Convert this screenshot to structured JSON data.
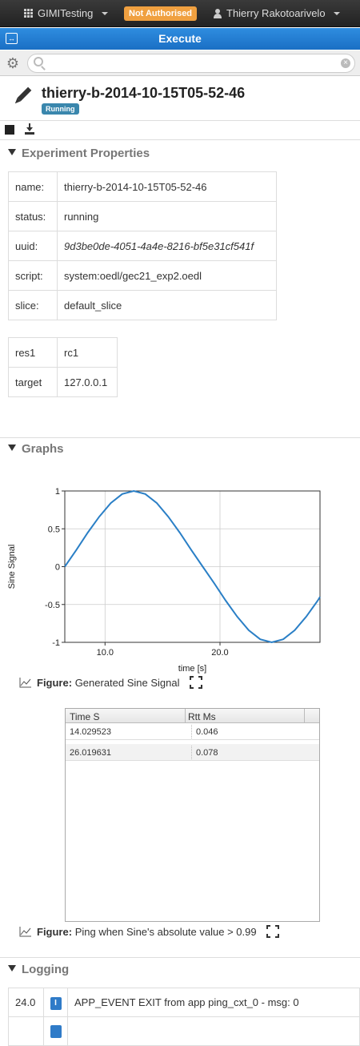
{
  "topbar": {
    "project": "GIMITesting",
    "auth_badge": "Not Authorised",
    "user": "Thierry Rakotoarivelo"
  },
  "execbar": {
    "title": "Execute"
  },
  "search": {
    "placeholder": "",
    "value": ""
  },
  "experiment": {
    "name": "thierry-b-2014-10-15T05-52-46",
    "status_badge": "Running"
  },
  "sections": {
    "properties": "Experiment Properties",
    "graphs": "Graphs",
    "logging": "Logging"
  },
  "properties": [
    {
      "key": "name:",
      "value": "thierry-b-2014-10-15T05-52-46"
    },
    {
      "key": "status:",
      "value": "running"
    },
    {
      "key": "uuid:",
      "value": "9d3be0de-4051-4a4e-8216-bf5e31cf541f"
    },
    {
      "key": "script:",
      "value": "system:oedl/gec21_exp2.oedl"
    },
    {
      "key": "slice:",
      "value": "default_slice"
    }
  ],
  "resources": [
    {
      "key": "res1",
      "value": "rc1"
    },
    {
      "key": "target",
      "value": "127.0.0.1"
    }
  ],
  "chart_data": {
    "type": "line",
    "xlabel": "time [s]",
    "ylabel": "Sine Signal",
    "xlim": [
      6.5,
      28.7
    ],
    "ylim": [
      -1,
      1
    ],
    "xticks": [
      "10.0",
      "20.0"
    ],
    "yticks": [
      "1",
      "0.5",
      "0",
      "-0.5",
      "-1"
    ],
    "grid": true,
    "series": [
      {
        "x": [
          6.5,
          7.5,
          8.5,
          9.5,
          10.5,
          11.5,
          12.5,
          13.5,
          14.5,
          15.5,
          16.5,
          17.5,
          18.5,
          19.5,
          20.5,
          21.5,
          22.5,
          23.5,
          24.5,
          25.5,
          26.5,
          27.5,
          28.5,
          28.7
        ],
        "y": [
          0,
          0.22,
          0.45,
          0.66,
          0.84,
          0.96,
          1.0,
          0.96,
          0.84,
          0.66,
          0.45,
          0.22,
          0.0,
          -0.22,
          -0.45,
          -0.66,
          -0.84,
          -0.96,
          -1.0,
          -0.96,
          -0.84,
          -0.66,
          -0.45,
          -0.4
        ]
      }
    ]
  },
  "figure1": {
    "label": "Figure:",
    "caption": "Generated Sine Signal"
  },
  "ping_table": {
    "columns": [
      "Time S",
      "Rtt Ms"
    ],
    "rows": [
      [
        "14.029523",
        "0.046"
      ],
      [
        "26.019631",
        "0.078"
      ]
    ]
  },
  "figure2": {
    "label": "Figure:",
    "caption": "Ping when Sine's absolute value > 0.99"
  },
  "log": [
    {
      "time": "24.0",
      "level": "I",
      "message": "APP_EVENT EXIT from app ping_cxt_0 - msg: 0"
    }
  ],
  "colors": {
    "line": "#2a7fc6",
    "execbar": "#1a6fc4",
    "badge": "#f0a040"
  }
}
